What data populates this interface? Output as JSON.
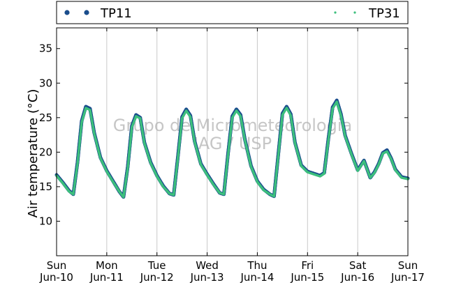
{
  "chart_data": {
    "type": "scatter",
    "ylabel": "Air temperature (°C)",
    "ylim": [
      5,
      38
    ],
    "yticks": [
      10,
      15,
      20,
      25,
      30,
      35
    ],
    "xlim": [
      "2015-06-10T00:00",
      "2015-06-17T00:00"
    ],
    "xticks": [
      {
        "day": "Sun",
        "date": "Jun-10"
      },
      {
        "day": "Mon",
        "date": "Jun-11"
      },
      {
        "day": "Tue",
        "date": "Jun-12"
      },
      {
        "day": "Wed",
        "date": "Jun-13"
      },
      {
        "day": "Thu",
        "date": "Jun-14"
      },
      {
        "day": "Fri",
        "date": "Jun-15"
      },
      {
        "day": "Sat",
        "date": "Jun-16"
      },
      {
        "day": "Sun",
        "date": "Jun-17"
      }
    ],
    "grid": "vertical",
    "legend_placement": "top, above plot",
    "watermark": [
      "Grupo de Micrometeorologia",
      "IAG / USP"
    ],
    "series": [
      {
        "name": "TP11",
        "color": "#1a4d8c",
        "marker": "filled circle",
        "x": [
          "2015-06-10T00:00",
          "2015-06-10T03:00",
          "2015-06-10T06:00",
          "2015-06-10T08:00",
          "2015-06-10T10:00",
          "2015-06-10T12:00",
          "2015-06-10T14:00",
          "2015-06-10T16:00",
          "2015-06-10T18:00",
          "2015-06-10T21:00",
          "2015-06-11T00:00",
          "2015-06-11T03:00",
          "2015-06-11T06:00",
          "2015-06-11T08:00",
          "2015-06-11T10:00",
          "2015-06-11T12:00",
          "2015-06-11T14:00",
          "2015-06-11T16:00",
          "2015-06-11T18:00",
          "2015-06-11T21:00",
          "2015-06-12T00:00",
          "2015-06-12T03:00",
          "2015-06-12T06:00",
          "2015-06-12T08:00",
          "2015-06-12T10:00",
          "2015-06-12T12:00",
          "2015-06-12T14:00",
          "2015-06-12T16:00",
          "2015-06-12T18:00",
          "2015-06-12T21:00",
          "2015-06-13T00:00",
          "2015-06-13T03:00",
          "2015-06-13T06:00",
          "2015-06-13T08:00",
          "2015-06-13T10:00",
          "2015-06-13T12:00",
          "2015-06-13T14:00",
          "2015-06-13T16:00",
          "2015-06-13T18:00",
          "2015-06-13T21:00",
          "2015-06-14T00:00",
          "2015-06-14T03:00",
          "2015-06-14T06:00",
          "2015-06-14T08:00",
          "2015-06-14T10:00",
          "2015-06-14T12:00",
          "2015-06-14T14:00",
          "2015-06-14T16:00",
          "2015-06-14T18:00",
          "2015-06-14T21:00",
          "2015-06-15T00:00",
          "2015-06-15T03:00",
          "2015-06-15T06:00",
          "2015-06-15T08:00",
          "2015-06-15T10:00",
          "2015-06-15T12:00",
          "2015-06-15T14:00",
          "2015-06-15T16:00",
          "2015-06-15T18:00",
          "2015-06-15T21:00",
          "2015-06-16T00:00",
          "2015-06-16T03:00",
          "2015-06-16T06:00",
          "2015-06-16T08:00",
          "2015-06-16T10:00",
          "2015-06-16T12:00",
          "2015-06-16T14:00",
          "2015-06-16T16:00",
          "2015-06-16T18:00",
          "2015-06-16T21:00",
          "2015-06-17T00:00"
        ],
        "y": [
          16.7,
          15.6,
          14.4,
          13.9,
          18.5,
          24.5,
          26.6,
          26.3,
          22.8,
          19.2,
          17.3,
          15.8,
          14.3,
          13.5,
          17.8,
          23.8,
          25.4,
          25.0,
          21.4,
          18.5,
          16.6,
          15.1,
          14.0,
          13.8,
          19.3,
          25.1,
          26.2,
          25.3,
          21.6,
          18.3,
          16.8,
          15.4,
          14.1,
          13.9,
          19.8,
          25.2,
          26.2,
          25.4,
          21.9,
          18.0,
          15.8,
          14.6,
          13.9,
          13.6,
          19.6,
          25.6,
          26.6,
          25.5,
          21.4,
          18.1,
          17.2,
          16.9,
          16.6,
          17.0,
          22.0,
          26.5,
          27.5,
          25.5,
          22.4,
          19.8,
          17.4,
          18.8,
          16.3,
          17.1,
          18.3,
          19.9,
          20.3,
          19.1,
          17.5,
          16.4,
          16.2
        ]
      },
      {
        "name": "TP31",
        "color": "#3dbf7d",
        "marker": "small point",
        "x": [
          "2015-06-10T00:00",
          "2015-06-10T03:00",
          "2015-06-10T06:00",
          "2015-06-10T08:00",
          "2015-06-10T10:00",
          "2015-06-10T12:00",
          "2015-06-10T14:00",
          "2015-06-10T16:00",
          "2015-06-10T18:00",
          "2015-06-10T21:00",
          "2015-06-11T00:00",
          "2015-06-11T03:00",
          "2015-06-11T06:00",
          "2015-06-11T08:00",
          "2015-06-11T10:00",
          "2015-06-11T12:00",
          "2015-06-11T14:00",
          "2015-06-11T16:00",
          "2015-06-11T18:00",
          "2015-06-11T21:00",
          "2015-06-12T00:00",
          "2015-06-12T03:00",
          "2015-06-12T06:00",
          "2015-06-12T08:00",
          "2015-06-12T10:00",
          "2015-06-12T12:00",
          "2015-06-12T14:00",
          "2015-06-12T16:00",
          "2015-06-12T18:00",
          "2015-06-12T21:00",
          "2015-06-13T00:00",
          "2015-06-13T03:00",
          "2015-06-13T06:00",
          "2015-06-13T08:00",
          "2015-06-13T10:00",
          "2015-06-13T12:00",
          "2015-06-13T14:00",
          "2015-06-13T16:00",
          "2015-06-13T18:00",
          "2015-06-13T21:00",
          "2015-06-14T00:00",
          "2015-06-14T03:00",
          "2015-06-14T06:00",
          "2015-06-14T08:00",
          "2015-06-14T10:00",
          "2015-06-14T12:00",
          "2015-06-14T14:00",
          "2015-06-14T16:00",
          "2015-06-14T18:00",
          "2015-06-14T21:00",
          "2015-06-15T00:00",
          "2015-06-15T03:00",
          "2015-06-15T06:00",
          "2015-06-15T08:00",
          "2015-06-15T10:00",
          "2015-06-15T12:00",
          "2015-06-15T14:00",
          "2015-06-15T16:00",
          "2015-06-15T18:00",
          "2015-06-15T21:00",
          "2015-06-16T00:00",
          "2015-06-16T03:00",
          "2015-06-16T06:00",
          "2015-06-16T08:00",
          "2015-06-16T10:00",
          "2015-06-16T12:00",
          "2015-06-16T14:00",
          "2015-06-16T16:00",
          "2015-06-16T18:00",
          "2015-06-16T21:00",
          "2015-06-17T00:00"
        ],
        "y": [
          16.6,
          15.5,
          14.3,
          13.9,
          18.3,
          24.3,
          26.4,
          26.1,
          22.7,
          19.1,
          17.2,
          15.7,
          14.3,
          13.5,
          17.6,
          23.6,
          25.2,
          24.9,
          21.3,
          18.4,
          16.5,
          15.0,
          14.0,
          13.8,
          19.1,
          24.9,
          26.0,
          25.1,
          21.5,
          18.2,
          16.7,
          15.3,
          14.1,
          13.9,
          19.6,
          25.0,
          26.0,
          25.2,
          21.8,
          17.9,
          15.7,
          14.5,
          13.9,
          13.6,
          19.4,
          25.4,
          26.4,
          25.3,
          21.3,
          18.0,
          17.1,
          16.8,
          16.5,
          16.9,
          21.8,
          26.3,
          27.3,
          25.3,
          22.3,
          19.7,
          17.3,
          18.7,
          16.3,
          17.0,
          18.2,
          19.8,
          20.1,
          19.0,
          17.4,
          16.3,
          16.1
        ]
      }
    ]
  }
}
